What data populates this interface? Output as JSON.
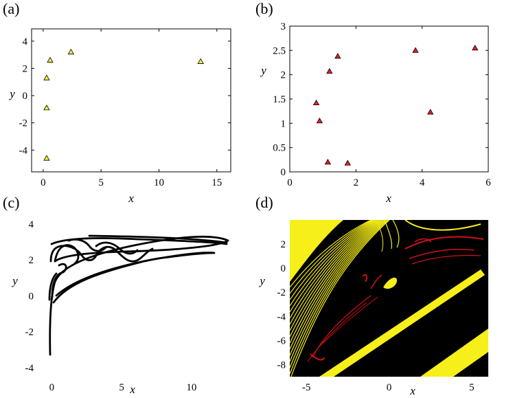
{
  "chart_data": [
    {
      "panel": "(a)",
      "type": "scatter",
      "xlabel": "x",
      "ylabel": "y",
      "xlim": [
        -1,
        16.2
      ],
      "ylim": [
        -5.6,
        4.9
      ],
      "xticks": [
        "0",
        "5",
        "10",
        "15"
      ],
      "yticks": [
        "4",
        "2",
        "0",
        "-2",
        "-4"
      ],
      "marker": "triangle",
      "marker_color": "#f2ee3a",
      "points": [
        [
          0.6,
          2.6
        ],
        [
          2.4,
          3.2
        ],
        [
          13.6,
          2.5
        ],
        [
          0.3,
          1.3
        ],
        [
          0.3,
          -0.9
        ],
        [
          0.3,
          -4.6
        ]
      ]
    },
    {
      "panel": "(b)",
      "type": "scatter",
      "xlabel": "x",
      "ylabel": "y",
      "xlim": [
        0,
        6
      ],
      "ylim": [
        0,
        3
      ],
      "xticks": [
        "0",
        "2",
        "4",
        "6"
      ],
      "yticks": [
        "3",
        "2.5",
        "2",
        "1.5",
        "1",
        "0.5",
        "0"
      ],
      "marker": "triangle",
      "marker_color": "#e3202a",
      "points": [
        [
          1.45,
          2.38
        ],
        [
          1.2,
          2.07
        ],
        [
          3.8,
          2.5
        ],
        [
          5.6,
          2.55
        ],
        [
          0.8,
          1.42
        ],
        [
          0.9,
          1.05
        ],
        [
          4.25,
          1.23
        ],
        [
          1.15,
          0.2
        ],
        [
          1.75,
          0.18
        ]
      ]
    },
    {
      "panel": "(c)",
      "type": "line",
      "xlabel": "x",
      "ylabel": "y",
      "xlim": [
        -1,
        13
      ],
      "ylim": [
        -4.5,
        4.3
      ],
      "xticks": [
        "0",
        "5",
        "10"
      ],
      "yticks": [
        "4",
        "2",
        "0",
        "-2",
        "-4"
      ],
      "line_color": "#000000"
    },
    {
      "panel": "(d)",
      "type": "heatmap",
      "xlabel": "x",
      "ylabel": "y",
      "xlim": [
        -6,
        6
      ],
      "ylim": [
        -9,
        4
      ],
      "xticks": [
        "-5",
        "0",
        "5"
      ],
      "yticks": [
        "2",
        "0",
        "-2",
        "-4",
        "-6",
        "-8"
      ],
      "colors": {
        "background": "#000000",
        "basin_a": "#f6ef19",
        "basin_b": "#d4101a"
      }
    }
  ]
}
